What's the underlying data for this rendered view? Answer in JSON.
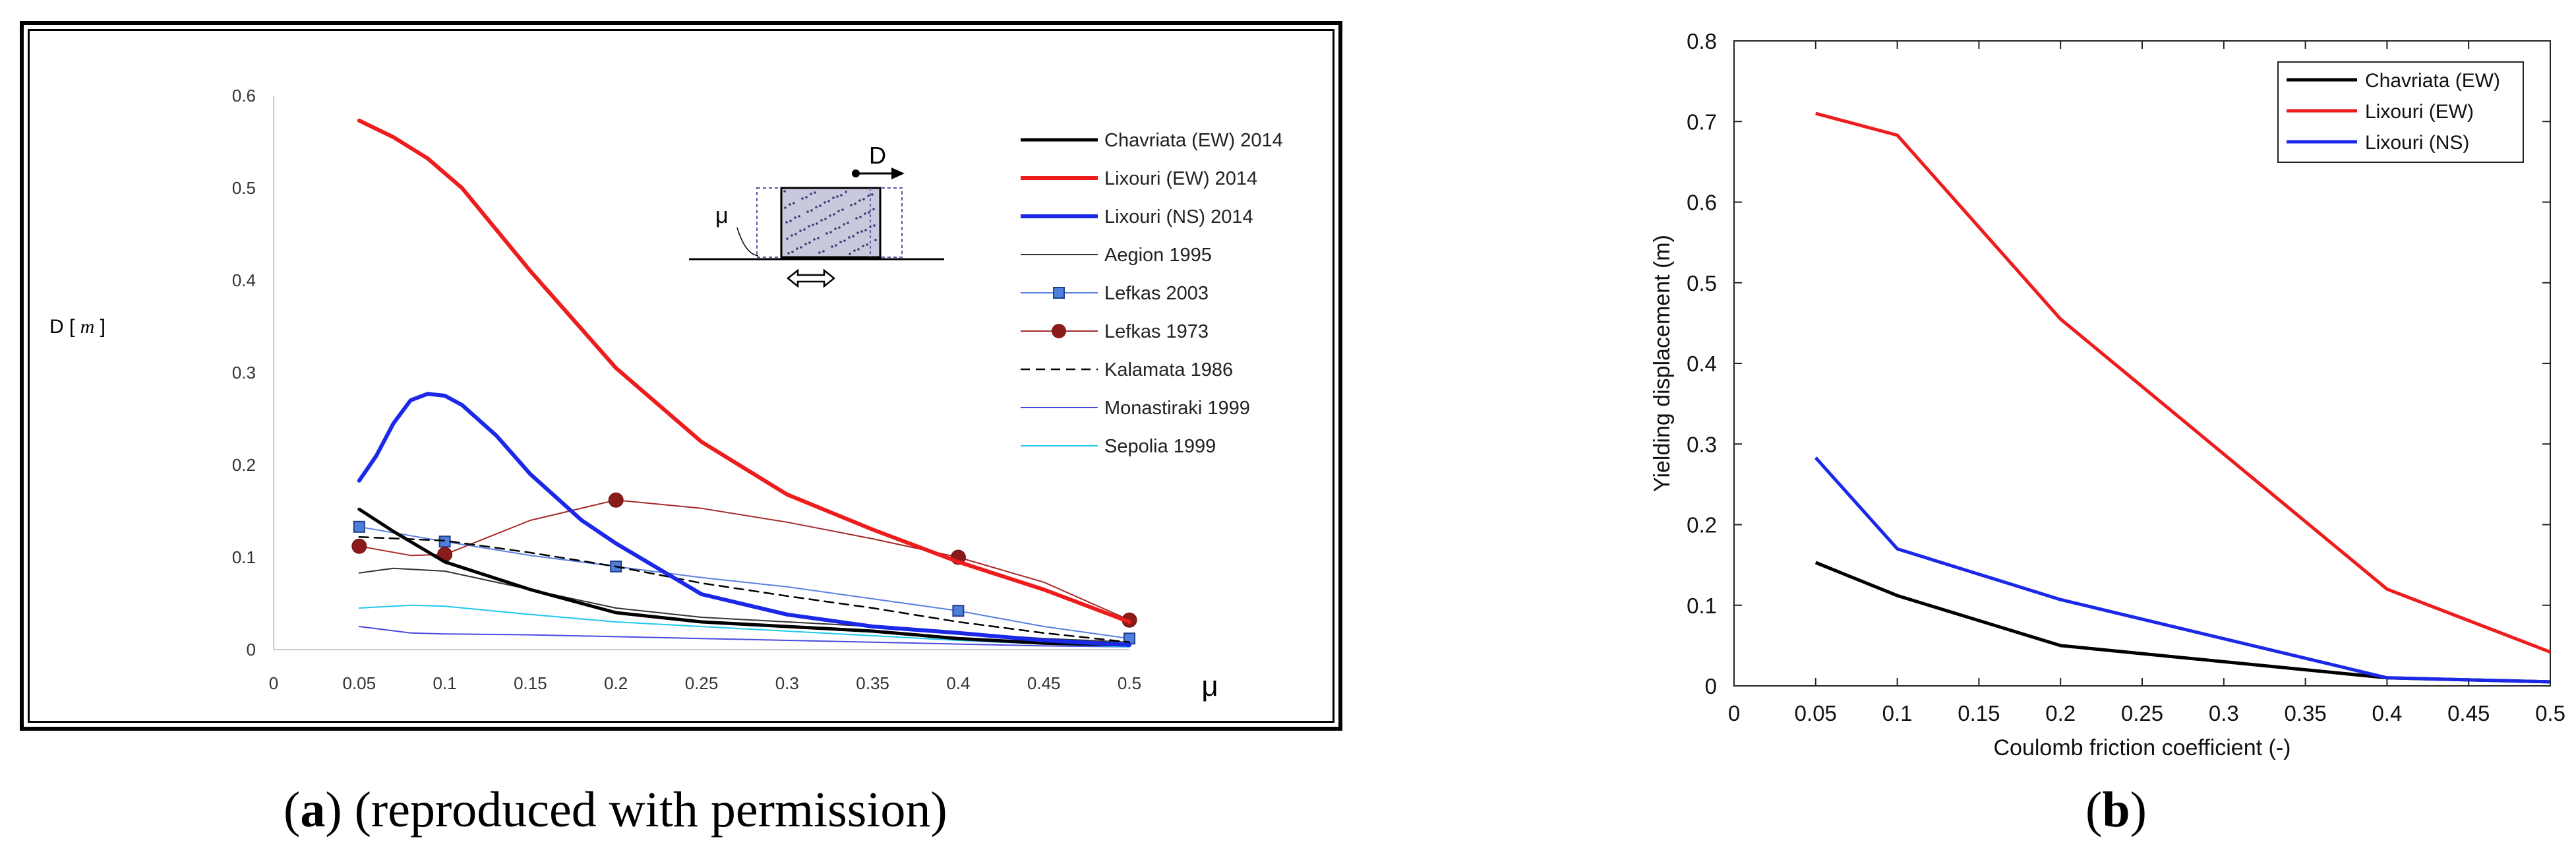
{
  "captions": {
    "a": {
      "label": "a",
      "text": "(reproduced with permission)"
    },
    "b": {
      "label": "b"
    }
  },
  "chart_data": [
    {
      "id": "a",
      "type": "line",
      "title": "",
      "xlabel": "μ",
      "ylabel": "D",
      "yunit": "m",
      "xlim": [
        0,
        0.5
      ],
      "ylim": [
        0,
        0.6
      ],
      "xticks": [
        "0",
        "0.05",
        "0.1",
        "0.15",
        "0.2",
        "0.25",
        "0.3",
        "0.35",
        "0.4",
        "0.45",
        "0.5"
      ],
      "yticks": [
        "0",
        "0.1",
        "0.2",
        "0.3",
        "0.4",
        "0.5",
        "0.6"
      ],
      "grid": false,
      "legend_position": "right",
      "inset": {
        "mu_label": "μ",
        "d_label": "D"
      },
      "series": [
        {
          "name": "Chavriata (EW) 2014",
          "color": "#000000",
          "width": 5,
          "marker": "none",
          "x": [
            0.05,
            0.07,
            0.1,
            0.15,
            0.2,
            0.25,
            0.3,
            0.35,
            0.4,
            0.45,
            0.5
          ],
          "y": [
            0.152,
            0.128,
            0.095,
            0.065,
            0.04,
            0.03,
            0.025,
            0.02,
            0.012,
            0.007,
            0.005
          ]
        },
        {
          "name": "Lixouri (EW) 2014",
          "color": "#ee1c1c",
          "width": 6,
          "marker": "none",
          "x": [
            0.05,
            0.07,
            0.09,
            0.11,
            0.15,
            0.2,
            0.25,
            0.3,
            0.35,
            0.4,
            0.45,
            0.5
          ],
          "y": [
            0.573,
            0.555,
            0.532,
            0.5,
            0.41,
            0.305,
            0.225,
            0.168,
            0.13,
            0.095,
            0.065,
            0.03
          ]
        },
        {
          "name": "Lixouri (NS) 2014",
          "color": "#1b28e8",
          "width": 6,
          "marker": "none",
          "x": [
            0.05,
            0.06,
            0.07,
            0.08,
            0.09,
            0.1,
            0.11,
            0.13,
            0.15,
            0.18,
            0.2,
            0.25,
            0.3,
            0.35,
            0.4,
            0.45,
            0.5
          ],
          "y": [
            0.183,
            0.21,
            0.245,
            0.27,
            0.277,
            0.275,
            0.265,
            0.232,
            0.19,
            0.14,
            0.115,
            0.06,
            0.038,
            0.025,
            0.018,
            0.01,
            0.005
          ]
        },
        {
          "name": "Aegion 1995",
          "color": "#333333",
          "width": 2,
          "marker": "none",
          "x": [
            0.05,
            0.07,
            0.1,
            0.15,
            0.2,
            0.25,
            0.3,
            0.35,
            0.4,
            0.45,
            0.5
          ],
          "y": [
            0.083,
            0.088,
            0.085,
            0.065,
            0.045,
            0.035,
            0.03,
            0.025,
            0.018,
            0.012,
            0.008
          ]
        },
        {
          "name": "Lefkas 2003",
          "color": "#5b7fe0",
          "width": 2,
          "marker": "square",
          "x": [
            0.05,
            0.1,
            0.15,
            0.2,
            0.25,
            0.3,
            0.35,
            0.4,
            0.45,
            0.5
          ],
          "y": [
            0.133,
            0.117,
            0.102,
            0.09,
            0.078,
            0.068,
            0.055,
            0.042,
            0.025,
            0.012
          ],
          "marker_indices": [
            0,
            1,
            3,
            7,
            9
          ]
        },
        {
          "name": "Lefkas 1973",
          "color": "#a52a2a",
          "width": 2,
          "marker": "circle",
          "x": [
            0.05,
            0.08,
            0.1,
            0.15,
            0.2,
            0.25,
            0.3,
            0.35,
            0.4,
            0.45,
            0.5
          ],
          "y": [
            0.112,
            0.102,
            0.103,
            0.14,
            0.162,
            0.153,
            0.138,
            0.12,
            0.1,
            0.073,
            0.032
          ],
          "marker_indices": [
            0,
            2,
            4,
            8,
            10
          ]
        },
        {
          "name": "Kalamata 1986",
          "color": "#000000",
          "width": 2.5,
          "marker": "none",
          "dash": true,
          "x": [
            0.05,
            0.1,
            0.15,
            0.2,
            0.25,
            0.3,
            0.35,
            0.4,
            0.45,
            0.5
          ],
          "y": [
            0.122,
            0.118,
            0.105,
            0.09,
            0.072,
            0.058,
            0.045,
            0.03,
            0.018,
            0.008
          ]
        },
        {
          "name": "Monastiraki 1999",
          "color": "#4a4adf",
          "width": 2,
          "marker": "none",
          "x": [
            0.05,
            0.08,
            0.1,
            0.15,
            0.2,
            0.25,
            0.3,
            0.35,
            0.4,
            0.45,
            0.5
          ],
          "y": [
            0.025,
            0.018,
            0.017,
            0.016,
            0.014,
            0.012,
            0.01,
            0.008,
            0.006,
            0.004,
            0.003
          ]
        },
        {
          "name": "Sepolia 1999",
          "color": "#22c7f0",
          "width": 2,
          "marker": "none",
          "x": [
            0.05,
            0.08,
            0.1,
            0.15,
            0.2,
            0.25,
            0.3,
            0.35,
            0.4,
            0.45,
            0.5
          ],
          "y": [
            0.045,
            0.048,
            0.047,
            0.038,
            0.03,
            0.025,
            0.02,
            0.015,
            0.01,
            0.006,
            0.003
          ]
        }
      ]
    },
    {
      "id": "b",
      "type": "line",
      "title": "",
      "xlabel": "Coulomb friction coefficient (-)",
      "ylabel": "Yielding displacement (m)",
      "xlim": [
        0,
        0.5
      ],
      "ylim": [
        0,
        0.8
      ],
      "xticks": [
        "0",
        "0.05",
        "0.1",
        "0.15",
        "0.2",
        "0.25",
        "0.3",
        "0.35",
        "0.4",
        "0.45",
        "0.5"
      ],
      "yticks": [
        "0",
        "0.1",
        "0.2",
        "0.3",
        "0.4",
        "0.5",
        "0.6",
        "0.7",
        "0.8"
      ],
      "grid": false,
      "legend_position": "top-right",
      "series": [
        {
          "name": "Chavriata (EW)",
          "color": "#000000",
          "width": 5,
          "x": [
            0.05,
            0.1,
            0.2,
            0.4,
            0.5
          ],
          "y": [
            0.153,
            0.112,
            0.05,
            0.01,
            0.005
          ]
        },
        {
          "name": "Lixouri (EW)",
          "color": "#ee1c1c",
          "width": 5,
          "x": [
            0.05,
            0.1,
            0.2,
            0.4,
            0.5
          ],
          "y": [
            0.71,
            0.683,
            0.455,
            0.12,
            0.042
          ]
        },
        {
          "name": "Lixouri (NS)",
          "color": "#1b28e8",
          "width": 5,
          "x": [
            0.05,
            0.1,
            0.2,
            0.4,
            0.5
          ],
          "y": [
            0.283,
            0.17,
            0.107,
            0.01,
            0.005
          ]
        }
      ]
    }
  ]
}
